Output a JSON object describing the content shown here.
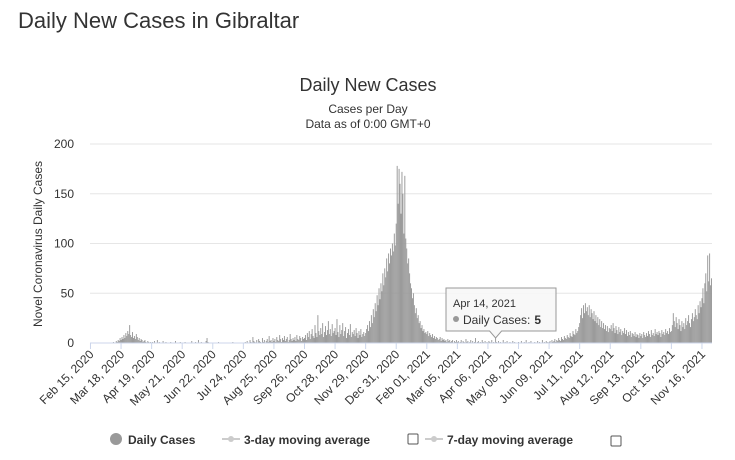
{
  "page_title": "Daily New Cases in Gibraltar",
  "chart_data": {
    "type": "bar",
    "title": "Daily New Cases",
    "subtitle": "Cases per Day",
    "subtitle2": "Data as of 0:00 GMT+0",
    "y_label": "Novel Coronavirus Daily Cases",
    "color": "#999999",
    "ylim": [
      0,
      200
    ],
    "yticks": [
      0,
      50,
      100,
      150,
      200
    ],
    "grid": true,
    "legend": [
      "Daily Cases",
      "3-day moving average",
      "7-day moving average"
    ],
    "tooltip": {
      "date": "Apr 14, 2021",
      "label": "Daily Cases:",
      "index": 424
    },
    "categories": [
      "Feb 15, 2020",
      null,
      null,
      null,
      null,
      null,
      null,
      null,
      null,
      null,
      null,
      null,
      null,
      null,
      null,
      null,
      null,
      null,
      null,
      null,
      null,
      null,
      null,
      null,
      null,
      null,
      null,
      null,
      null,
      null,
      null,
      null,
      "Mar 18, 2020",
      null,
      null,
      null,
      null,
      null,
      null,
      null,
      null,
      null,
      null,
      null,
      null,
      null,
      null,
      null,
      null,
      null,
      null,
      null,
      null,
      null,
      null,
      null,
      null,
      null,
      null,
      null,
      null,
      null,
      null,
      null,
      "Apr 19, 2020",
      null,
      null,
      null,
      null,
      null,
      null,
      null,
      null,
      null,
      null,
      null,
      null,
      null,
      null,
      null,
      null,
      null,
      null,
      null,
      null,
      null,
      null,
      null,
      null,
      null,
      null,
      null,
      null,
      null,
      null,
      null,
      "May 21, 2020",
      null,
      null,
      null,
      null,
      null,
      null,
      null,
      null,
      null,
      null,
      null,
      null,
      null,
      null,
      null,
      null,
      null,
      null,
      null,
      null,
      null,
      null,
      null,
      null,
      null,
      null,
      null,
      null,
      null,
      null,
      null,
      "Jun 22, 2020",
      null,
      null,
      null,
      null,
      null,
      null,
      null,
      null,
      null,
      null,
      null,
      null,
      null,
      null,
      null,
      null,
      null,
      null,
      null,
      null,
      null,
      null,
      null,
      null,
      null,
      null,
      null,
      null,
      null,
      null,
      null,
      "Jul 24, 2020",
      null,
      null,
      null,
      null,
      null,
      null,
      null,
      null,
      null,
      null,
      null,
      null,
      null,
      null,
      null,
      null,
      null,
      null,
      null,
      null,
      null,
      null,
      null,
      null,
      null,
      null,
      null,
      null,
      null,
      null,
      null,
      "Aug 25, 2020",
      null,
      null,
      null,
      null,
      null,
      null,
      null,
      null,
      null,
      null,
      null,
      null,
      null,
      null,
      null,
      null,
      null,
      null,
      null,
      null,
      null,
      null,
      null,
      null,
      null,
      null,
      null,
      null,
      null,
      null,
      null,
      "Sep 26, 2020",
      null,
      null,
      null,
      null,
      null,
      null,
      null,
      null,
      null,
      null,
      null,
      null,
      null,
      null,
      null,
      null,
      null,
      null,
      null,
      null,
      null,
      null,
      null,
      null,
      null,
      null,
      null,
      null,
      null,
      null,
      null,
      "Oct 28, 2020",
      null,
      null,
      null,
      null,
      null,
      null,
      null,
      null,
      null,
      null,
      null,
      null,
      null,
      null,
      null,
      null,
      null,
      null,
      null,
      null,
      null,
      null,
      null,
      null,
      null,
      null,
      null,
      null,
      null,
      null,
      null,
      "Nov 29, 2020",
      null,
      null,
      null,
      null,
      null,
      null,
      null,
      null,
      null,
      null,
      null,
      null,
      null,
      null,
      null,
      null,
      null,
      null,
      null,
      null,
      null,
      null,
      null,
      null,
      null,
      null,
      null,
      null,
      null,
      null,
      null,
      "Dec 31, 2020",
      null,
      null,
      null,
      null,
      null,
      null,
      null,
      null,
      null,
      null,
      null,
      null,
      null,
      null,
      null,
      null,
      null,
      null,
      null,
      null,
      null,
      null,
      null,
      null,
      null,
      null,
      null,
      null,
      null,
      null,
      null,
      "Feb 01, 2021",
      null,
      null,
      null,
      null,
      null,
      null,
      null,
      null,
      null,
      null,
      null,
      null,
      null,
      null,
      null,
      null,
      null,
      null,
      null,
      null,
      null,
      null,
      null,
      null,
      null,
      null,
      null,
      null,
      null,
      null,
      null,
      "Mar 05, 2021",
      null,
      null,
      null,
      null,
      null,
      null,
      null,
      null,
      null,
      null,
      null,
      null,
      null,
      null,
      null,
      null,
      null,
      null,
      null,
      null,
      null,
      null,
      null,
      null,
      null,
      null,
      null,
      null,
      null,
      null,
      null,
      "Apr 06, 2021",
      null,
      null,
      null,
      null,
      null,
      null,
      null,
      null,
      null,
      null,
      null,
      null,
      null,
      null,
      null,
      null,
      null,
      null,
      null,
      null,
      null,
      null,
      null,
      null,
      null,
      null,
      null,
      null,
      null,
      null,
      null,
      "May 08, 2021",
      null,
      null,
      null,
      null,
      null,
      null,
      null,
      null,
      null,
      null,
      null,
      null,
      null,
      null,
      null,
      null,
      null,
      null,
      null,
      null,
      null,
      null,
      null,
      null,
      null,
      null,
      null,
      null,
      null,
      null,
      null,
      "Jun 09, 2021",
      null,
      null,
      null,
      null,
      null,
      null,
      null,
      null,
      null,
      null,
      null,
      null,
      null,
      null,
      null,
      null,
      null,
      null,
      null,
      null,
      null,
      null,
      null,
      null,
      null,
      null,
      null,
      null,
      null,
      null,
      null,
      "Jul 11, 2021",
      null,
      null,
      null,
      null,
      null,
      null,
      null,
      null,
      null,
      null,
      null,
      null,
      null,
      null,
      null,
      null,
      null,
      null,
      null,
      null,
      null,
      null,
      null,
      null,
      null,
      null,
      null,
      null,
      null,
      null,
      null,
      "Aug 12, 2021",
      null,
      null,
      null,
      null,
      null,
      null,
      null,
      null,
      null,
      null,
      null,
      null,
      null,
      null,
      null,
      null,
      null,
      null,
      null,
      null,
      null,
      null,
      null,
      null,
      null,
      null,
      null,
      null,
      null,
      null,
      null,
      "Sep 13, 2021",
      null,
      null,
      null,
      null,
      null,
      null,
      null,
      null,
      null,
      null,
      null,
      null,
      null,
      null,
      null,
      null,
      null,
      null,
      null,
      null,
      null,
      null,
      null,
      null,
      null,
      null,
      null,
      null,
      null,
      null,
      null,
      "Oct 15, 2021",
      null,
      null,
      null,
      null,
      null,
      null,
      null,
      null,
      null,
      null,
      null,
      null,
      null,
      null,
      null,
      null,
      null,
      null,
      null,
      null,
      null,
      null,
      null,
      null,
      null,
      null,
      null,
      null,
      null,
      null,
      null,
      "Nov 16, 2021",
      null,
      null,
      null,
      null,
      null,
      null,
      null,
      null,
      null,
      null
    ],
    "values": [
      0,
      0,
      0,
      0,
      0,
      0,
      0,
      0,
      0,
      0,
      0,
      0,
      0,
      0,
      0,
      0,
      0,
      0,
      0,
      0,
      0,
      0,
      0,
      0,
      1,
      0,
      0,
      2,
      1,
      3,
      2,
      5,
      3,
      6,
      4,
      8,
      5,
      10,
      7,
      12,
      9,
      18,
      8,
      6,
      11,
      5,
      7,
      4,
      9,
      6,
      3,
      5,
      2,
      4,
      3,
      1,
      2,
      3,
      1,
      0,
      2,
      1,
      0,
      1,
      0,
      1,
      0,
      2,
      0,
      0,
      3,
      0,
      1,
      0,
      0,
      0,
      2,
      0,
      0,
      1,
      0,
      0,
      0,
      0,
      1,
      0,
      0,
      0,
      0,
      2,
      0,
      0,
      0,
      0,
      1,
      0,
      0,
      0,
      0,
      1,
      0,
      0,
      0,
      0,
      0,
      0,
      2,
      0,
      0,
      0,
      1,
      0,
      0,
      3,
      0,
      0,
      1,
      0,
      0,
      0,
      0,
      2,
      5,
      1,
      0,
      0,
      0,
      0,
      0,
      0,
      0,
      0,
      0,
      0,
      1,
      0,
      0,
      0,
      0,
      0,
      0,
      0,
      0,
      0,
      0,
      0,
      0,
      0,
      0,
      1,
      0,
      0,
      0,
      0,
      0,
      0,
      0,
      0,
      0,
      0,
      0,
      0,
      1,
      0,
      2,
      0,
      0,
      3,
      1,
      0,
      6,
      2,
      1,
      0,
      3,
      0,
      4,
      2,
      1,
      0,
      5,
      1,
      3,
      0,
      2,
      4,
      1,
      7,
      2,
      3,
      1,
      5,
      2,
      4,
      1,
      6,
      3,
      2,
      8,
      4,
      1,
      5,
      3,
      7,
      2,
      4,
      6,
      1,
      3,
      9,
      4,
      2,
      5,
      3,
      6,
      2,
      8,
      4,
      3,
      7,
      5,
      2,
      6,
      4,
      5,
      8,
      3,
      10,
      6,
      12,
      4,
      9,
      14,
      7,
      5,
      18,
      10,
      6,
      28,
      12,
      8,
      15,
      9,
      20,
      6,
      11,
      17,
      8,
      13,
      22,
      9,
      14,
      7,
      19,
      10,
      12,
      15,
      8,
      24,
      11,
      6,
      18,
      9,
      13,
      20,
      7,
      12,
      16,
      5,
      10,
      14,
      8,
      19,
      6,
      11,
      9,
      13,
      7,
      15,
      10,
      5,
      12,
      8,
      14,
      6,
      9,
      11,
      7,
      10,
      14,
      18,
      12,
      22,
      16,
      28,
      20,
      34,
      26,
      40,
      32,
      48,
      38,
      55,
      44,
      60,
      52,
      70,
      58,
      75,
      66,
      85,
      72,
      90,
      80,
      95,
      88,
      100,
      92,
      110,
      98,
      120,
      178,
      140,
      175,
      160,
      130,
      172,
      150,
      110,
      168,
      105,
      95,
      80,
      85,
      70,
      60,
      55,
      45,
      50,
      38,
      30,
      35,
      25,
      28,
      20,
      22,
      15,
      18,
      12,
      14,
      10,
      11,
      9,
      12,
      7,
      10,
      8,
      6,
      9,
      5,
      7,
      4,
      6,
      5,
      3,
      4,
      6,
      2,
      5,
      3,
      4,
      2,
      3,
      1,
      4,
      2,
      3,
      1,
      2,
      3,
      0,
      2,
      1,
      3,
      1,
      2,
      0,
      1,
      3,
      0,
      2,
      1,
      0,
      4,
      1,
      2,
      0,
      1,
      3,
      0,
      2,
      0,
      1,
      5,
      0,
      1,
      2,
      0,
      1,
      0,
      3,
      1,
      0,
      2,
      0,
      1,
      0,
      2,
      1,
      0,
      3,
      0,
      1,
      0,
      5,
      1,
      0,
      2,
      0,
      1,
      0,
      0,
      3,
      0,
      1,
      0,
      2,
      0,
      0,
      1,
      0,
      0,
      2,
      0,
      1,
      0,
      0,
      0,
      1,
      0,
      0,
      2,
      0,
      0,
      1,
      0,
      3,
      0,
      0,
      1,
      0,
      2,
      0,
      0,
      0,
      1,
      0,
      0,
      2,
      0,
      1,
      0,
      0,
      3,
      0,
      1,
      0,
      2,
      1,
      0,
      1,
      2,
      0,
      3,
      1,
      2,
      4,
      1,
      3,
      2,
      5,
      3,
      2,
      6,
      4,
      3,
      7,
      5,
      4,
      8,
      6,
      5,
      10,
      7,
      6,
      12,
      9,
      8,
      14,
      10,
      12,
      16,
      20,
      28,
      35,
      25,
      38,
      30,
      40,
      32,
      36,
      28,
      38,
      26,
      34,
      30,
      24,
      32,
      22,
      28,
      20,
      26,
      18,
      24,
      16,
      22,
      15,
      20,
      14,
      18,
      12,
      17,
      11,
      15,
      14,
      18,
      12,
      20,
      15,
      10,
      17,
      13,
      9,
      16,
      11,
      14,
      8,
      12,
      10,
      15,
      9,
      13,
      7,
      11,
      8,
      12,
      6,
      10,
      9,
      7,
      11,
      6,
      9,
      8,
      5,
      10,
      7,
      9,
      5,
      11,
      8,
      6,
      10,
      7,
      12,
      9,
      6,
      13,
      8,
      10,
      7,
      14,
      9,
      11,
      8,
      12,
      10,
      6,
      13,
      9,
      11,
      8,
      14,
      10,
      12,
      9,
      15,
      11,
      12,
      18,
      30,
      22,
      16,
      26,
      20,
      14,
      24,
      18,
      12,
      22,
      16,
      20,
      14,
      25,
      18,
      22,
      28,
      20,
      16,
      24,
      30,
      22,
      26,
      34,
      28,
      24,
      38,
      30,
      42,
      36,
      45,
      55,
      40,
      60,
      70,
      52,
      88,
      62,
      90,
      58,
      65
    ]
  }
}
